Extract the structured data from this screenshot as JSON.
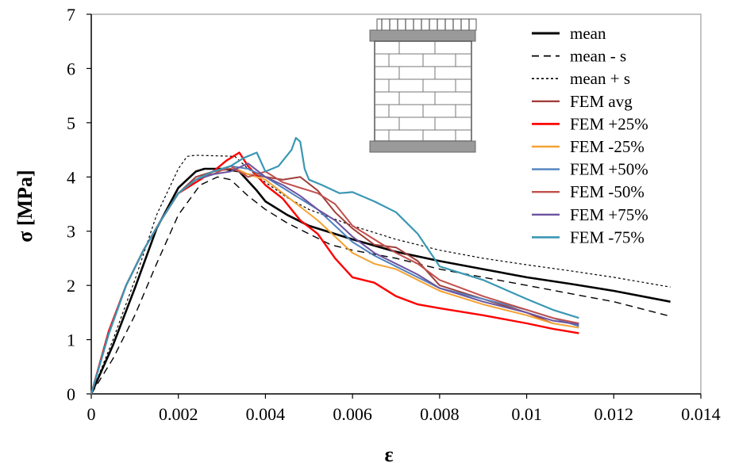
{
  "chart_data": {
    "type": "line",
    "xlabel": "ε",
    "ylabel": "σ [MPa]",
    "xlim": [
      0,
      0.014
    ],
    "ylim": [
      0,
      7
    ],
    "x_ticks": [
      "0",
      "0.002",
      "0.004",
      "0.006",
      "0.008",
      "0.01",
      "0.012",
      "0.014"
    ],
    "y_ticks": [
      "0",
      "1",
      "2",
      "3",
      "4",
      "5",
      "6",
      "7"
    ],
    "grid": false,
    "legend_position": "top-right",
    "inset": "masonry-wall-under-load-icon",
    "series": [
      {
        "name": "mean",
        "color": "#000000",
        "style": "solid",
        "width": 2.6,
        "points": [
          [
            0,
            0
          ],
          [
            0.0005,
            0.9
          ],
          [
            0.001,
            1.95
          ],
          [
            0.0015,
            3.05
          ],
          [
            0.002,
            3.8
          ],
          [
            0.0024,
            4.1
          ],
          [
            0.0026,
            4.15
          ],
          [
            0.003,
            4.15
          ],
          [
            0.0034,
            4.1
          ],
          [
            0.0038,
            3.75
          ],
          [
            0.004,
            3.55
          ],
          [
            0.0045,
            3.3
          ],
          [
            0.005,
            3.1
          ],
          [
            0.006,
            2.85
          ],
          [
            0.007,
            2.62
          ],
          [
            0.008,
            2.45
          ],
          [
            0.009,
            2.3
          ],
          [
            0.01,
            2.15
          ],
          [
            0.011,
            2.03
          ],
          [
            0.012,
            1.9
          ],
          [
            0.0133,
            1.7
          ]
        ]
      },
      {
        "name": "mean - s",
        "color": "#000000",
        "style": "dashed",
        "width": 1.4,
        "points": [
          [
            0,
            0
          ],
          [
            0.0005,
            0.65
          ],
          [
            0.001,
            1.45
          ],
          [
            0.0015,
            2.4
          ],
          [
            0.002,
            3.3
          ],
          [
            0.0025,
            3.85
          ],
          [
            0.0029,
            4.0
          ],
          [
            0.0032,
            3.95
          ],
          [
            0.0036,
            3.65
          ],
          [
            0.004,
            3.4
          ],
          [
            0.0045,
            3.15
          ],
          [
            0.005,
            2.95
          ],
          [
            0.0055,
            2.75
          ],
          [
            0.006,
            2.65
          ],
          [
            0.007,
            2.5
          ],
          [
            0.008,
            2.3
          ],
          [
            0.009,
            2.15
          ],
          [
            0.01,
            2.0
          ],
          [
            0.011,
            1.85
          ],
          [
            0.012,
            1.7
          ],
          [
            0.0133,
            1.43
          ]
        ]
      },
      {
        "name": "mean + s",
        "color": "#000000",
        "style": "dotted",
        "width": 1.2,
        "points": [
          [
            0,
            0
          ],
          [
            0.0005,
            1.0
          ],
          [
            0.001,
            2.1
          ],
          [
            0.0015,
            3.3
          ],
          [
            0.002,
            4.15
          ],
          [
            0.0022,
            4.38
          ],
          [
            0.0024,
            4.4
          ],
          [
            0.0033,
            4.38
          ],
          [
            0.0036,
            4.15
          ],
          [
            0.004,
            3.9
          ],
          [
            0.0045,
            3.62
          ],
          [
            0.005,
            3.4
          ],
          [
            0.006,
            3.1
          ],
          [
            0.007,
            2.85
          ],
          [
            0.008,
            2.65
          ],
          [
            0.009,
            2.5
          ],
          [
            0.01,
            2.38
          ],
          [
            0.011,
            2.27
          ],
          [
            0.012,
            2.15
          ],
          [
            0.0133,
            1.97
          ]
        ]
      },
      {
        "name": "FEM avg",
        "color": "#a0403b",
        "style": "solid",
        "width": 2,
        "points": [
          [
            0,
            0
          ],
          [
            0.0004,
            1.1
          ],
          [
            0.0008,
            2.0
          ],
          [
            0.0012,
            2.65
          ],
          [
            0.0016,
            3.2
          ],
          [
            0.002,
            3.7
          ],
          [
            0.0024,
            4.0
          ],
          [
            0.0028,
            4.1
          ],
          [
            0.0032,
            4.15
          ],
          [
            0.0036,
            4.05
          ],
          [
            0.004,
            4.0
          ],
          [
            0.0044,
            3.95
          ],
          [
            0.0048,
            4.0
          ],
          [
            0.0052,
            3.75
          ],
          [
            0.0056,
            3.35
          ],
          [
            0.006,
            3.05
          ],
          [
            0.0065,
            2.75
          ],
          [
            0.007,
            2.7
          ],
          [
            0.0075,
            2.45
          ],
          [
            0.008,
            2.0
          ],
          [
            0.009,
            1.75
          ],
          [
            0.01,
            1.5
          ],
          [
            0.0106,
            1.3
          ]
        ]
      },
      {
        "name": "FEM +25%",
        "color": "#ff0000",
        "style": "solid",
        "width": 2.4,
        "points": [
          [
            0,
            0
          ],
          [
            0.0004,
            1.15
          ],
          [
            0.0008,
            2.0
          ],
          [
            0.0012,
            2.65
          ],
          [
            0.0016,
            3.2
          ],
          [
            0.002,
            3.7
          ],
          [
            0.0024,
            3.9
          ],
          [
            0.0028,
            4.1
          ],
          [
            0.0031,
            4.3
          ],
          [
            0.0034,
            4.45
          ],
          [
            0.0036,
            4.2
          ],
          [
            0.004,
            3.85
          ],
          [
            0.0044,
            3.6
          ],
          [
            0.0048,
            3.2
          ],
          [
            0.0052,
            2.95
          ],
          [
            0.0056,
            2.5
          ],
          [
            0.006,
            2.15
          ],
          [
            0.0065,
            2.05
          ],
          [
            0.007,
            1.8
          ],
          [
            0.0075,
            1.65
          ],
          [
            0.008,
            1.58
          ],
          [
            0.009,
            1.45
          ],
          [
            0.01,
            1.3
          ],
          [
            0.0106,
            1.2
          ],
          [
            0.0112,
            1.12
          ]
        ]
      },
      {
        "name": "FEM -25%",
        "color": "#f4a234",
        "style": "solid",
        "width": 2,
        "points": [
          [
            0,
            0
          ],
          [
            0.0004,
            1.1
          ],
          [
            0.0008,
            2.0
          ],
          [
            0.0012,
            2.65
          ],
          [
            0.0016,
            3.2
          ],
          [
            0.002,
            3.7
          ],
          [
            0.0024,
            3.95
          ],
          [
            0.0028,
            4.05
          ],
          [
            0.0032,
            4.2
          ],
          [
            0.0036,
            4.05
          ],
          [
            0.004,
            3.95
          ],
          [
            0.0044,
            3.7
          ],
          [
            0.0048,
            3.45
          ],
          [
            0.0052,
            3.2
          ],
          [
            0.0056,
            2.9
          ],
          [
            0.006,
            2.6
          ],
          [
            0.0065,
            2.4
          ],
          [
            0.007,
            2.3
          ],
          [
            0.0075,
            2.1
          ],
          [
            0.008,
            1.9
          ],
          [
            0.009,
            1.65
          ],
          [
            0.01,
            1.45
          ],
          [
            0.0106,
            1.3
          ],
          [
            0.0112,
            1.22
          ]
        ]
      },
      {
        "name": "FEM +50%",
        "color": "#4f81bd",
        "style": "solid",
        "width": 2,
        "points": [
          [
            0,
            0
          ],
          [
            0.0004,
            1.1
          ],
          [
            0.0008,
            2.0
          ],
          [
            0.0012,
            2.65
          ],
          [
            0.0016,
            3.2
          ],
          [
            0.002,
            3.7
          ],
          [
            0.0024,
            3.95
          ],
          [
            0.0028,
            4.1
          ],
          [
            0.0032,
            4.2
          ],
          [
            0.0036,
            4.15
          ],
          [
            0.004,
            4.0
          ],
          [
            0.0044,
            3.8
          ],
          [
            0.0048,
            3.6
          ],
          [
            0.0052,
            3.4
          ],
          [
            0.0056,
            3.1
          ],
          [
            0.006,
            2.8
          ],
          [
            0.0065,
            2.55
          ],
          [
            0.007,
            2.35
          ],
          [
            0.0075,
            2.15
          ],
          [
            0.008,
            1.95
          ],
          [
            0.009,
            1.75
          ],
          [
            0.01,
            1.55
          ],
          [
            0.0106,
            1.4
          ],
          [
            0.0112,
            1.25
          ]
        ]
      },
      {
        "name": "FEM -50%",
        "color": "#c0504d",
        "style": "solid",
        "width": 2,
        "points": [
          [
            0,
            0
          ],
          [
            0.0004,
            1.1
          ],
          [
            0.0008,
            2.0
          ],
          [
            0.0012,
            2.65
          ],
          [
            0.0016,
            3.2
          ],
          [
            0.002,
            3.7
          ],
          [
            0.0024,
            3.95
          ],
          [
            0.0028,
            4.05
          ],
          [
            0.0032,
            4.2
          ],
          [
            0.0036,
            4.0
          ],
          [
            0.004,
            4.1
          ],
          [
            0.0044,
            3.9
          ],
          [
            0.0048,
            3.8
          ],
          [
            0.0052,
            3.7
          ],
          [
            0.0056,
            3.5
          ],
          [
            0.006,
            3.1
          ],
          [
            0.0065,
            2.85
          ],
          [
            0.007,
            2.6
          ],
          [
            0.0075,
            2.4
          ],
          [
            0.008,
            2.1
          ],
          [
            0.009,
            1.8
          ],
          [
            0.01,
            1.55
          ],
          [
            0.0106,
            1.4
          ],
          [
            0.0112,
            1.3
          ]
        ]
      },
      {
        "name": "FEM +75%",
        "color": "#6c54a0",
        "style": "solid",
        "width": 2,
        "points": [
          [
            0,
            0
          ],
          [
            0.0004,
            1.1
          ],
          [
            0.0008,
            2.0
          ],
          [
            0.0012,
            2.65
          ],
          [
            0.0016,
            3.2
          ],
          [
            0.002,
            3.7
          ],
          [
            0.0024,
            3.95
          ],
          [
            0.0028,
            4.05
          ],
          [
            0.0032,
            4.1
          ],
          [
            0.0036,
            4.25
          ],
          [
            0.004,
            4.0
          ],
          [
            0.0044,
            3.85
          ],
          [
            0.0048,
            3.65
          ],
          [
            0.0052,
            3.4
          ],
          [
            0.0056,
            3.2
          ],
          [
            0.006,
            2.9
          ],
          [
            0.0065,
            2.6
          ],
          [
            0.007,
            2.4
          ],
          [
            0.0075,
            2.2
          ],
          [
            0.008,
            1.95
          ],
          [
            0.009,
            1.7
          ],
          [
            0.01,
            1.5
          ],
          [
            0.0106,
            1.35
          ],
          [
            0.0112,
            1.28
          ]
        ]
      },
      {
        "name": "FEM -75%",
        "color": "#3a97b3",
        "style": "solid",
        "width": 2.2,
        "points": [
          [
            0,
            0
          ],
          [
            0.0004,
            1.1
          ],
          [
            0.0008,
            2.0
          ],
          [
            0.0012,
            2.65
          ],
          [
            0.0016,
            3.2
          ],
          [
            0.002,
            3.7
          ],
          [
            0.0024,
            3.95
          ],
          [
            0.0028,
            4.1
          ],
          [
            0.0032,
            4.2
          ],
          [
            0.0035,
            4.35
          ],
          [
            0.0038,
            4.45
          ],
          [
            0.004,
            4.1
          ],
          [
            0.0043,
            4.2
          ],
          [
            0.0046,
            4.5
          ],
          [
            0.0047,
            4.72
          ],
          [
            0.0048,
            4.65
          ],
          [
            0.0049,
            4.15
          ],
          [
            0.005,
            3.95
          ],
          [
            0.0053,
            3.85
          ],
          [
            0.0057,
            3.7
          ],
          [
            0.006,
            3.72
          ],
          [
            0.0065,
            3.55
          ],
          [
            0.007,
            3.35
          ],
          [
            0.0075,
            2.95
          ],
          [
            0.008,
            2.35
          ],
          [
            0.009,
            2.1
          ],
          [
            0.01,
            1.75
          ],
          [
            0.0106,
            1.55
          ],
          [
            0.0112,
            1.4
          ]
        ]
      }
    ]
  }
}
